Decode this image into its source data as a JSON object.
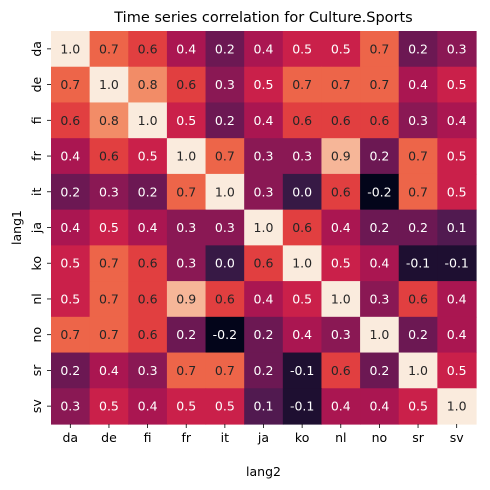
{
  "chart_data": {
    "type": "heatmap",
    "title": "Time series correlation for Culture.Sports",
    "xlabel": "lang2",
    "ylabel": "lang1",
    "x_categories": [
      "da",
      "de",
      "fi",
      "fr",
      "it",
      "ja",
      "ko",
      "nl",
      "no",
      "sr",
      "sv"
    ],
    "y_categories": [
      "da",
      "de",
      "fi",
      "fr",
      "it",
      "ja",
      "ko",
      "nl",
      "no",
      "sr",
      "sv"
    ],
    "values": [
      [
        1.0,
        0.7,
        0.6,
        0.4,
        0.2,
        0.4,
        0.5,
        0.5,
        0.7,
        0.2,
        0.3
      ],
      [
        0.7,
        1.0,
        0.8,
        0.6,
        0.3,
        0.5,
        0.7,
        0.7,
        0.7,
        0.4,
        0.5
      ],
      [
        0.6,
        0.8,
        1.0,
        0.5,
        0.2,
        0.4,
        0.6,
        0.6,
        0.6,
        0.3,
        0.4
      ],
      [
        0.4,
        0.6,
        0.5,
        1.0,
        0.7,
        0.3,
        0.3,
        0.9,
        0.2,
        0.7,
        0.5
      ],
      [
        0.2,
        0.3,
        0.2,
        0.7,
        1.0,
        0.3,
        0.0,
        0.6,
        -0.2,
        0.7,
        0.5
      ],
      [
        0.4,
        0.5,
        0.4,
        0.3,
        0.3,
        1.0,
        0.6,
        0.4,
        0.2,
        0.2,
        0.1
      ],
      [
        0.5,
        0.7,
        0.6,
        0.3,
        0.0,
        0.6,
        1.0,
        0.5,
        0.4,
        -0.1,
        -0.1
      ],
      [
        0.5,
        0.7,
        0.6,
        0.9,
        0.6,
        0.4,
        0.5,
        1.0,
        0.3,
        0.6,
        0.4
      ],
      [
        0.7,
        0.7,
        0.6,
        0.2,
        -0.2,
        0.2,
        0.4,
        0.3,
        1.0,
        0.2,
        0.4
      ],
      [
        0.2,
        0.4,
        0.3,
        0.7,
        0.7,
        0.2,
        -0.1,
        0.6,
        0.2,
        1.0,
        0.5
      ],
      [
        0.3,
        0.5,
        0.4,
        0.5,
        0.5,
        0.1,
        -0.1,
        0.4,
        0.4,
        0.5,
        1.0
      ]
    ],
    "value_range": [
      -0.2,
      1.0
    ],
    "colormap": "rocket",
    "annotated": true,
    "grid": false,
    "colors": {
      "low": "#03051a",
      "high": "#faebdd",
      "annotation_light": "#ffffff",
      "annotation_dark": "#262626"
    }
  }
}
